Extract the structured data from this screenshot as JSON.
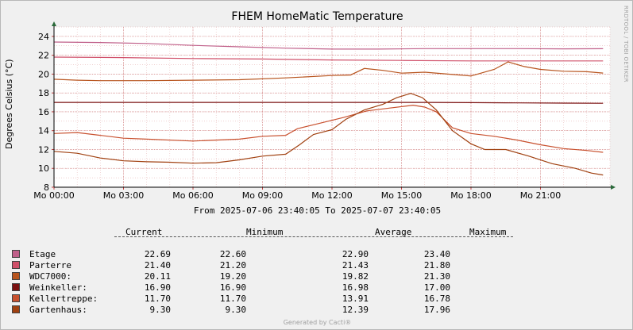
{
  "chart_data": {
    "type": "line",
    "title": "FHEM HomeMatic Temperature",
    "ylabel": "Degrees Celsius (°C)",
    "xlabel": "",
    "ylim": [
      8,
      25
    ],
    "yticks": [
      8,
      10,
      12,
      14,
      16,
      18,
      20,
      22,
      24
    ],
    "xticks": [
      {
        "h": 0,
        "label": "Mo 00:00"
      },
      {
        "h": 3,
        "label": "Mo 03:00"
      },
      {
        "h": 6,
        "label": "Mo 06:00"
      },
      {
        "h": 9,
        "label": "Mo 09:00"
      },
      {
        "h": 12,
        "label": "Mo 12:00"
      },
      {
        "h": 15,
        "label": "Mo 15:00"
      },
      {
        "h": 18,
        "label": "Mo 18:00"
      },
      {
        "h": 21,
        "label": "Mo 21:00"
      }
    ],
    "xlim": [
      0,
      24
    ],
    "grid": true,
    "range_text": "From 2025-07-06 23:40:05 To 2025-07-07 23:40:05",
    "series": [
      {
        "name": "Etage",
        "color": "#c0608a",
        "current": "22.69",
        "minimum": "22.60",
        "average": "22.90",
        "maximum": "23.40",
        "points": [
          [
            0,
            23.4
          ],
          [
            2,
            23.35
          ],
          [
            4,
            23.25
          ],
          [
            6,
            23.05
          ],
          [
            8,
            22.9
          ],
          [
            10,
            22.75
          ],
          [
            12,
            22.65
          ],
          [
            14,
            22.65
          ],
          [
            16,
            22.7
          ],
          [
            18,
            22.7
          ],
          [
            20,
            22.7
          ],
          [
            22,
            22.68
          ],
          [
            23.7,
            22.69
          ]
        ]
      },
      {
        "name": "Parterre",
        "color": "#d0506a",
        "current": "21.40",
        "minimum": "21.20",
        "average": "21.43",
        "maximum": "21.80",
        "points": [
          [
            0,
            21.8
          ],
          [
            3,
            21.75
          ],
          [
            6,
            21.65
          ],
          [
            9,
            21.6
          ],
          [
            12,
            21.5
          ],
          [
            15,
            21.45
          ],
          [
            18,
            21.4
          ],
          [
            21,
            21.4
          ],
          [
            23.7,
            21.4
          ]
        ]
      },
      {
        "name": "WDC7000:",
        "color": "#b8541e",
        "current": "20.11",
        "minimum": "19.20",
        "average": "19.82",
        "maximum": "21.30",
        "points": [
          [
            0,
            19.45
          ],
          [
            1,
            19.35
          ],
          [
            2,
            19.3
          ],
          [
            4,
            19.3
          ],
          [
            6,
            19.35
          ],
          [
            8,
            19.4
          ],
          [
            10,
            19.6
          ],
          [
            12,
            19.85
          ],
          [
            12.8,
            19.9
          ],
          [
            13.4,
            20.6
          ],
          [
            14.2,
            20.4
          ],
          [
            15,
            20.1
          ],
          [
            16,
            20.2
          ],
          [
            17,
            20.0
          ],
          [
            18,
            19.8
          ],
          [
            19,
            20.5
          ],
          [
            19.6,
            21.3
          ],
          [
            20.3,
            20.8
          ],
          [
            21,
            20.5
          ],
          [
            22,
            20.3
          ],
          [
            23,
            20.25
          ],
          [
            23.7,
            20.11
          ]
        ]
      },
      {
        "name": "Weinkeller:",
        "color": "#7a1010",
        "current": "16.90",
        "minimum": "16.90",
        "average": "16.98",
        "maximum": "17.00",
        "points": [
          [
            0,
            17.0
          ],
          [
            6,
            17.0
          ],
          [
            12,
            17.0
          ],
          [
            15,
            17.0
          ],
          [
            16,
            17.0
          ],
          [
            18,
            16.97
          ],
          [
            20,
            16.95
          ],
          [
            22,
            16.92
          ],
          [
            23.7,
            16.9
          ]
        ]
      },
      {
        "name": "Kellertreppe:",
        "color": "#c8502e",
        "current": "11.70",
        "minimum": "11.70",
        "average": "13.91",
        "maximum": "16.78",
        "points": [
          [
            0,
            13.7
          ],
          [
            1,
            13.8
          ],
          [
            2,
            13.5
          ],
          [
            3,
            13.2
          ],
          [
            4,
            13.1
          ],
          [
            6,
            12.9
          ],
          [
            8,
            13.1
          ],
          [
            9,
            13.4
          ],
          [
            10,
            13.5
          ],
          [
            10.5,
            14.2
          ],
          [
            11.5,
            14.8
          ],
          [
            12.5,
            15.4
          ],
          [
            13.5,
            16.1
          ],
          [
            14.5,
            16.4
          ],
          [
            15.5,
            16.7
          ],
          [
            16,
            16.5
          ],
          [
            16.5,
            16.0
          ],
          [
            17.2,
            14.3
          ],
          [
            18,
            13.7
          ],
          [
            19,
            13.4
          ],
          [
            20,
            13.0
          ],
          [
            21,
            12.5
          ],
          [
            22,
            12.1
          ],
          [
            23,
            11.9
          ],
          [
            23.7,
            11.7
          ]
        ]
      },
      {
        "name": "Gartenhaus:",
        "color": "#a04010",
        "current": "9.30",
        "minimum": "9.30",
        "average": "12.39",
        "maximum": "17.96",
        "points": [
          [
            0,
            11.8
          ],
          [
            1,
            11.6
          ],
          [
            2,
            11.1
          ],
          [
            3,
            10.8
          ],
          [
            4,
            10.7
          ],
          [
            5,
            10.65
          ],
          [
            6,
            10.55
          ],
          [
            7,
            10.6
          ],
          [
            8,
            10.9
          ],
          [
            9,
            11.3
          ],
          [
            10,
            11.5
          ],
          [
            10.6,
            12.5
          ],
          [
            11.2,
            13.6
          ],
          [
            12,
            14.1
          ],
          [
            12.6,
            15.2
          ],
          [
            13.4,
            16.2
          ],
          [
            14.2,
            16.8
          ],
          [
            14.8,
            17.5
          ],
          [
            15.4,
            17.96
          ],
          [
            15.9,
            17.5
          ],
          [
            16.5,
            16.2
          ],
          [
            17.2,
            14.0
          ],
          [
            18,
            12.6
          ],
          [
            18.6,
            12.0
          ],
          [
            19.5,
            12.0
          ],
          [
            20.5,
            11.3
          ],
          [
            21.5,
            10.5
          ],
          [
            22.5,
            10.0
          ],
          [
            23.2,
            9.5
          ],
          [
            23.7,
            9.3
          ]
        ]
      }
    ]
  },
  "legend": {
    "head_current": "Current",
    "head_minimum": "Minimum",
    "head_average": "Average",
    "head_maximum": "Maximum"
  },
  "side_credit": "RRDTOOL / TOBI OETIKER",
  "footer": "Generated by Cacti®"
}
